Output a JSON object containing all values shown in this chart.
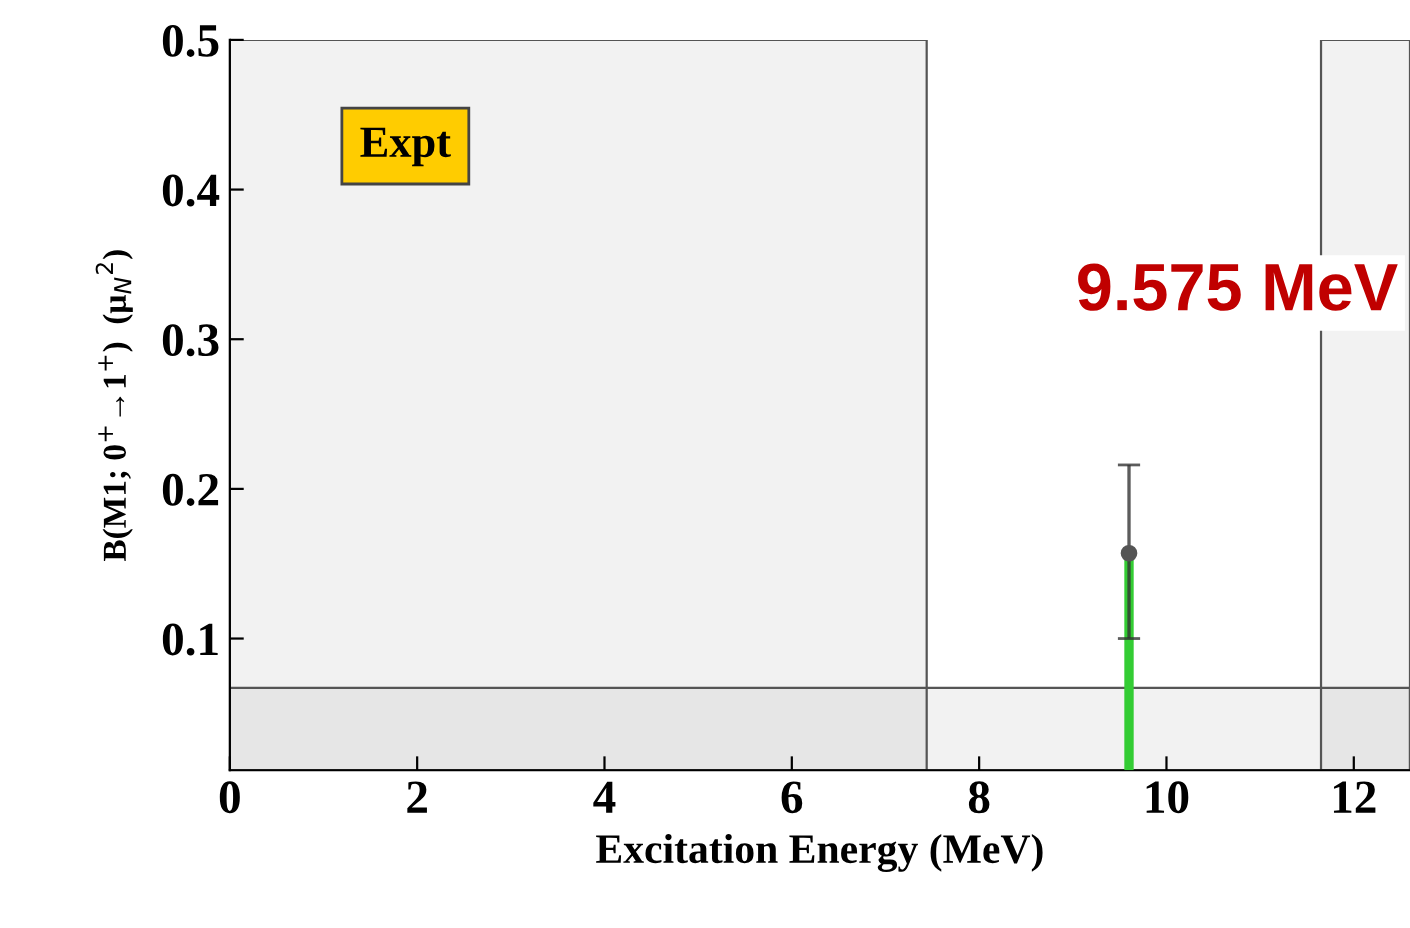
{
  "chart_data": {
    "type": "bar",
    "xlabel": "Excitation Energy (MeV)",
    "ylabel": "B(M1; 0$^{+}$→1$^{+}$)  (μ$_{N}$$^{2}$)",
    "x": [
      9.6
    ],
    "series": [
      {
        "color": "#33cc33",
        "values": [
          0.157
        ],
        "errors": [
          [
            0.1,
            0.216
          ]
        ]
      },
      {
        "type": "scatter",
        "color": "#555555",
        "values": [
          0.157
        ],
        "marker": "circle"
      }
    ],
    "xlim": [
      0,
      12.6
    ],
    "ylim": [
      0.012,
      0.5
    ],
    "xticks": [
      0,
      2,
      4,
      6,
      8,
      10,
      12
    ],
    "yticks": [
      0.1,
      0.2,
      0.3,
      0.4,
      0.5
    ],
    "bands": [
      {
        "axis": "x",
        "from": 0,
        "to": 7.44,
        "color": "#555555"
      },
      {
        "axis": "x",
        "from": 11.65,
        "to": 12.6,
        "color": "#555555"
      },
      {
        "axis": "y",
        "from": 0.012,
        "to": 0.067,
        "color": "#555555"
      }
    ],
    "annotations": [
      "Expt",
      "9.575 MeV"
    ],
    "grid": false,
    "legend": false
  }
}
